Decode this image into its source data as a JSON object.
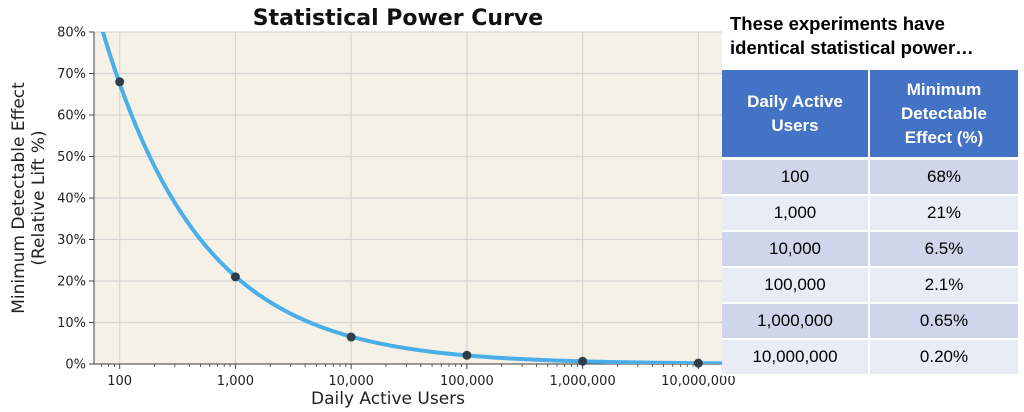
{
  "chart_data": {
    "type": "line",
    "title": "Statistical Power Curve",
    "xlabel": "Daily Active Users",
    "ylabel_lines": [
      "Minimum Detectable Effect",
      "(Relative Lift %)"
    ],
    "x_scale": "log",
    "xlim": [
      60,
      16000000
    ],
    "ylim": [
      0,
      80
    ],
    "x_ticks": [
      100,
      1000,
      10000,
      100000,
      1000000,
      10000000
    ],
    "x_tick_labels": [
      "100",
      "1,000",
      "10,000",
      "100,000",
      "1,000,000",
      "10,000,000"
    ],
    "y_ticks": [
      0,
      10,
      20,
      30,
      40,
      50,
      60,
      70,
      80
    ],
    "y_tick_labels": [
      "0%",
      "10%",
      "20%",
      "30%",
      "40%",
      "50%",
      "60%",
      "70%",
      "80%"
    ],
    "grid": true,
    "curve_color": "#4aaee8",
    "point_color": "#2f3f4a",
    "plot_background": "#f5f1e6",
    "points": {
      "x": [
        100,
        1000,
        10000,
        100000,
        1000000,
        10000000
      ],
      "y": [
        68,
        21,
        6.5,
        2.1,
        0.65,
        0.2
      ]
    }
  },
  "side_panel": {
    "heading_lines": [
      "These experiments have",
      "identical statistical power…"
    ],
    "table": {
      "headers": [
        [
          "Daily Active",
          "Users"
        ],
        [
          "Minimum",
          "Detectable",
          "Effect (%)"
        ]
      ],
      "rows": [
        [
          "100",
          "68%"
        ],
        [
          "1,000",
          "21%"
        ],
        [
          "10,000",
          "6.5%"
        ],
        [
          "100,000",
          "2.1%"
        ],
        [
          "1,000,000",
          "0.65%"
        ],
        [
          "10,000,000",
          "0.20%"
        ]
      ]
    }
  }
}
